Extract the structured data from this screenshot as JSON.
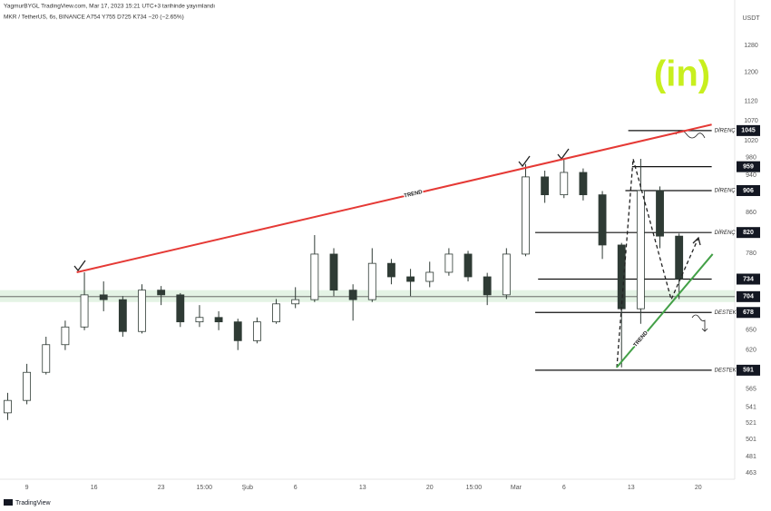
{
  "header": {
    "author": "YagmurBYGL TradingView.com, Mar 17, 2023 15:21 UTC+3 tarihinde yayımlandı",
    "legend": "MKR / TetherUS, 6s, BINANCE A754 Y755 D725 K734 −20 (−2.65%)"
  },
  "logo": "(in)",
  "footer": "TradingView",
  "chart_data": {
    "type": "candlestick",
    "y_unit": "USDT",
    "log_scale": true,
    "grid": false,
    "up_color": "#ffffff",
    "down_color": "#2f3b35",
    "wick_color": "#2f3b35",
    "x": [
      -2,
      0,
      2,
      4,
      6,
      8,
      10,
      12,
      14,
      16,
      18,
      20,
      22,
      24,
      26,
      28,
      30,
      32,
      34,
      36,
      38,
      40,
      42,
      44,
      46,
      48,
      50,
      52,
      54,
      56,
      58,
      60,
      62,
      64,
      66,
      68
    ],
    "open": [
      534,
      550,
      588,
      628,
      655,
      707,
      699,
      648,
      715,
      707,
      663,
      670,
      663,
      634,
      663,
      692,
      699,
      779,
      715,
      699,
      762,
      738,
      730,
      746,
      779,
      738,
      707,
      779,
      936,
      897,
      946,
      897,
      796,
      684,
      906,
      813
    ],
    "high": [
      560,
      600,
      640,
      665,
      746,
      730,
      705,
      725,
      722,
      710,
      690,
      680,
      668,
      670,
      700,
      720,
      815,
      790,
      725,
      790,
      770,
      752,
      765,
      790,
      785,
      745,
      790,
      965,
      950,
      977,
      955,
      905,
      800,
      977,
      915,
      818
    ],
    "low": [
      525,
      545,
      585,
      620,
      650,
      680,
      640,
      645,
      690,
      655,
      655,
      650,
      620,
      630,
      660,
      685,
      695,
      705,
      665,
      695,
      725,
      705,
      720,
      740,
      730,
      690,
      700,
      775,
      880,
      890,
      885,
      770,
      595,
      660,
      790,
      700
    ],
    "close": [
      550,
      588,
      628,
      655,
      707,
      699,
      648,
      715,
      707,
      663,
      670,
      663,
      634,
      663,
      692,
      699,
      779,
      715,
      699,
      762,
      738,
      730,
      746,
      779,
      738,
      707,
      779,
      936,
      897,
      946,
      897,
      796,
      684,
      906,
      813,
      734
    ],
    "xlim": [
      -2.8,
      73.8
    ],
    "xticks": [
      {
        "value": 0,
        "label": "9"
      },
      {
        "value": 7,
        "label": "16"
      },
      {
        "value": 14,
        "label": "23"
      },
      {
        "value": 18.5,
        "label": "15:00"
      },
      {
        "value": 23,
        "label": "Şub"
      },
      {
        "value": 28,
        "label": "6"
      },
      {
        "value": 35,
        "label": "13"
      },
      {
        "value": 42,
        "label": "20"
      },
      {
        "value": 46.6,
        "label": "15:00"
      },
      {
        "value": 51,
        "label": "Mar"
      },
      {
        "value": 56,
        "label": "6"
      },
      {
        "value": 63,
        "label": "13"
      },
      {
        "value": 70,
        "label": "20"
      }
    ],
    "ylim": [
      456,
      1342
    ],
    "yticks": [
      463,
      481,
      501,
      521,
      541,
      565,
      620,
      650,
      780,
      860,
      940,
      980,
      1020,
      1070,
      1120,
      1200,
      1280
    ],
    "levels": [
      {
        "value": 1045,
        "name": "DİRENÇ",
        "x": [
          62.7,
          71.4
        ]
      },
      {
        "value": 959,
        "x": [
          63.1,
          71.4
        ]
      },
      {
        "value": 906,
        "name": "DİRENÇ",
        "x": [
          62.4,
          71.4
        ]
      },
      {
        "value": 820,
        "name": "DİRENÇ",
        "x": [
          53.0,
          71.4
        ]
      },
      {
        "value": 734,
        "x": [
          53.3,
          71.4
        ]
      },
      {
        "value": 704,
        "x": [
          -2.8,
          73.8
        ],
        "band": [
          695,
          715
        ],
        "band_color": "#4caf50"
      },
      {
        "value": 678,
        "name": "DESTEK",
        "x": [
          53.0,
          71.4
        ]
      },
      {
        "value": 591,
        "name": "DESTEK",
        "x": [
          53.0,
          71.4
        ]
      }
    ],
    "trend_lines": [
      {
        "name": "TREND",
        "color": "#e53935",
        "x": [
          5.2,
          71.4
        ],
        "y": [
          746,
          1060
        ]
      },
      {
        "name": "TREND",
        "color": "#43a047",
        "x": [
          61.5,
          71.5
        ],
        "y": [
          595,
          779
        ]
      }
    ]
  }
}
